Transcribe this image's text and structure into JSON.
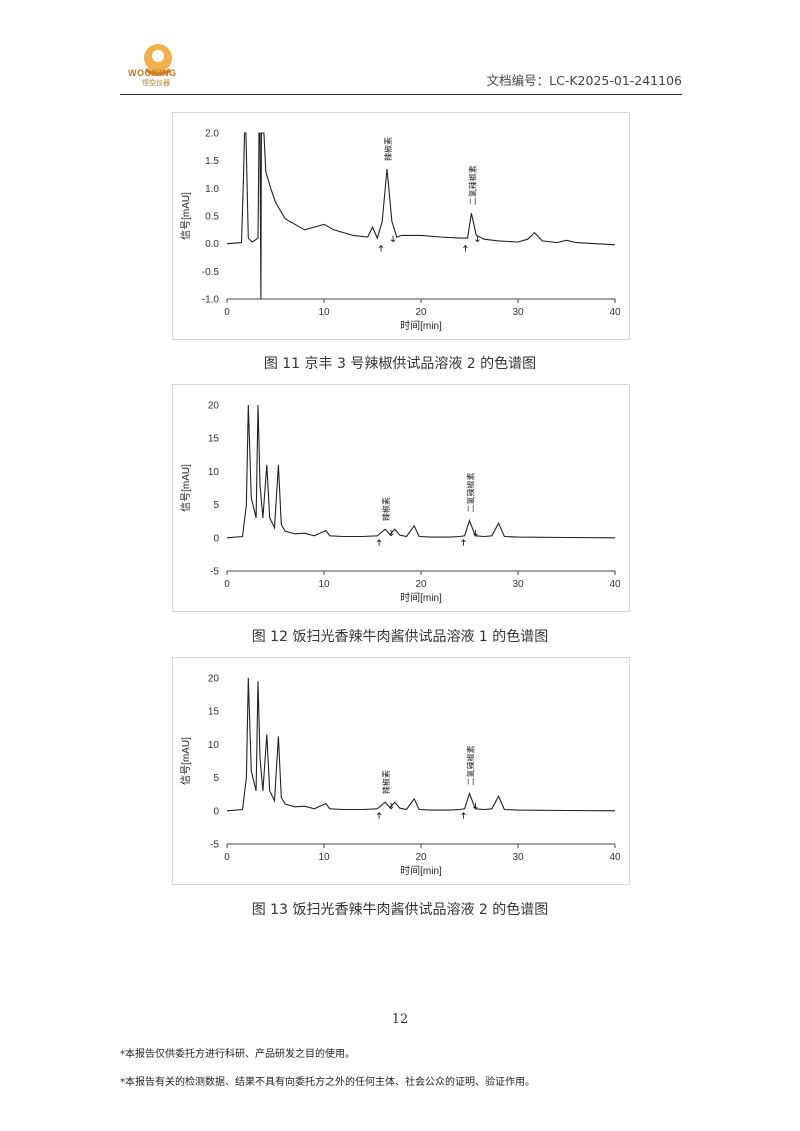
{
  "header": {
    "logo_text": "WOOKING",
    "logo_sub": "悟空仪器",
    "doc_number": "文档编号：LC-K2025-01-241106"
  },
  "captions": [
    "图 11  京丰 3 号辣椒供试品溶液 2 的色谱图",
    "图 12  饭扫光香辣牛肉酱供试品溶液 1 的色谱图",
    "图 13  饭扫光香辣牛肉酱供试品溶液 2 的色谱图"
  ],
  "page_number": "12",
  "footnotes": [
    "*本报告仅供委托方进行科研、产品研发之目的使用。",
    "*本报告有关的检测数据、结果不具有向委托方之外的任何主体、社会公众的证明、验证作用。"
  ],
  "colors": {
    "trace": "#222222",
    "axis": "#444444",
    "logo": "#c8761a"
  },
  "chart_data": [
    {
      "type": "line",
      "xlabel": "时间[min]",
      "ylabel": "信号[mAU]",
      "xlim": [
        0,
        40
      ],
      "ylim": [
        -1.0,
        2.0
      ],
      "xticks": [
        0,
        10,
        20,
        30,
        40
      ],
      "yticks": [
        -1.0,
        -0.5,
        0.0,
        0.5,
        1.0,
        1.5,
        2.0
      ],
      "ytick_labels": [
        "-1.0",
        "-0.5",
        "0.0",
        "0.5",
        "1.0",
        "1.5",
        "2.0"
      ],
      "baseline": 0.0,
      "points": [
        [
          0,
          0
        ],
        [
          1.5,
          0.02
        ],
        [
          1.7,
          1.2
        ],
        [
          1.8,
          2.0
        ],
        [
          1.95,
          2.0
        ],
        [
          2.2,
          0.1
        ],
        [
          2.6,
          0.03
        ],
        [
          3.2,
          0.1
        ],
        [
          3.3,
          2.0
        ],
        [
          3.4,
          2.0
        ],
        [
          3.5,
          -1.0
        ],
        [
          3.55,
          2.0
        ],
        [
          3.8,
          2.0
        ],
        [
          4.0,
          1.3
        ],
        [
          4.5,
          1.0
        ],
        [
          5.0,
          0.75
        ],
        [
          5.5,
          0.6
        ],
        [
          6.0,
          0.45
        ],
        [
          7.0,
          0.35
        ],
        [
          8.0,
          0.25
        ],
        [
          9.0,
          0.3
        ],
        [
          10.0,
          0.35
        ],
        [
          11.0,
          0.25
        ],
        [
          12.0,
          0.2
        ],
        [
          13.0,
          0.15
        ],
        [
          14.5,
          0.12
        ],
        [
          15.0,
          0.3
        ],
        [
          15.5,
          0.1
        ],
        [
          16.0,
          0.4
        ],
        [
          16.5,
          1.35
        ],
        [
          17.0,
          0.4
        ],
        [
          17.5,
          0.12
        ],
        [
          18,
          0.15
        ],
        [
          20,
          0.15
        ],
        [
          22,
          0.12
        ],
        [
          24,
          0.1
        ],
        [
          24.8,
          0.1
        ],
        [
          25.2,
          0.55
        ],
        [
          25.7,
          0.15
        ],
        [
          26.5,
          0.08
        ],
        [
          28,
          0.05
        ],
        [
          30,
          0.03
        ],
        [
          31,
          0.08
        ],
        [
          31.7,
          0.2
        ],
        [
          32.5,
          0.05
        ],
        [
          34,
          0.02
        ],
        [
          35,
          0.06
        ],
        [
          36,
          0.02
        ],
        [
          38,
          0.0
        ],
        [
          40,
          -0.02
        ]
      ],
      "annotations": [
        {
          "label": "辣椒素",
          "x": 16.5,
          "y": 1.35
        },
        {
          "label": "二氢辣椒素",
          "x": 25.2,
          "y": 0.55
        }
      ]
    },
    {
      "type": "line",
      "xlabel": "时间[min]",
      "ylabel": "信号[mAU]",
      "xlim": [
        0,
        40
      ],
      "ylim": [
        -5,
        20
      ],
      "xticks": [
        0,
        10,
        20,
        30,
        40
      ],
      "yticks": [
        -5,
        0,
        5,
        10,
        15,
        20
      ],
      "ytick_labels": [
        "-5",
        "0",
        "5",
        "10",
        "15",
        "20"
      ],
      "baseline": 0,
      "points": [
        [
          0,
          0
        ],
        [
          1.6,
          0.2
        ],
        [
          2.0,
          5
        ],
        [
          2.2,
          20
        ],
        [
          2.5,
          6
        ],
        [
          3.0,
          3
        ],
        [
          3.2,
          20
        ],
        [
          3.4,
          8
        ],
        [
          3.7,
          3
        ],
        [
          4.1,
          11
        ],
        [
          4.4,
          3
        ],
        [
          4.9,
          1.5
        ],
        [
          5.3,
          11
        ],
        [
          5.6,
          2
        ],
        [
          6.0,
          1.0
        ],
        [
          7,
          0.6
        ],
        [
          8,
          0.7
        ],
        [
          9,
          0.3
        ],
        [
          10.2,
          1.1
        ],
        [
          10.6,
          0.3
        ],
        [
          12,
          0.2
        ],
        [
          14,
          0.2
        ],
        [
          15.5,
          0.3
        ],
        [
          16.3,
          1.3
        ],
        [
          16.8,
          0.5
        ],
        [
          17.3,
          1.3
        ],
        [
          17.8,
          0.4
        ],
        [
          18.5,
          0.2
        ],
        [
          19.3,
          1.8
        ],
        [
          19.8,
          0.2
        ],
        [
          21,
          0.1
        ],
        [
          23,
          0.1
        ],
        [
          24,
          0.2
        ],
        [
          24.5,
          0.3
        ],
        [
          25.0,
          2.6
        ],
        [
          25.6,
          0.3
        ],
        [
          26.5,
          0.2
        ],
        [
          27.3,
          0.3
        ],
        [
          28.0,
          2.2
        ],
        [
          28.6,
          0.2
        ],
        [
          30,
          0.1
        ],
        [
          35,
          0.05
        ],
        [
          40,
          0
        ]
      ],
      "annotations": [
        {
          "label": "辣椒素",
          "x": 16.3,
          "y": 1.3
        },
        {
          "label": "二氢辣椒素",
          "x": 25.0,
          "y": 2.6
        }
      ]
    },
    {
      "type": "line",
      "xlabel": "时间[min]",
      "ylabel": "信号[mAU]",
      "xlim": [
        0,
        40
      ],
      "ylim": [
        -5,
        20
      ],
      "xticks": [
        0,
        10,
        20,
        30,
        40
      ],
      "yticks": [
        -5,
        0,
        5,
        10,
        15,
        20
      ],
      "ytick_labels": [
        "-5",
        "0",
        "5",
        "10",
        "15",
        "20"
      ],
      "baseline": 0,
      "points": [
        [
          0,
          0
        ],
        [
          1.6,
          0.2
        ],
        [
          2.0,
          5
        ],
        [
          2.2,
          20
        ],
        [
          2.5,
          6
        ],
        [
          3.0,
          3
        ],
        [
          3.2,
          19.5
        ],
        [
          3.4,
          8
        ],
        [
          3.7,
          3
        ],
        [
          4.1,
          11.5
        ],
        [
          4.4,
          3
        ],
        [
          4.9,
          1.5
        ],
        [
          5.3,
          11.2
        ],
        [
          5.6,
          2
        ],
        [
          6.0,
          1.0
        ],
        [
          7,
          0.6
        ],
        [
          8,
          0.7
        ],
        [
          9,
          0.3
        ],
        [
          10.2,
          1.1
        ],
        [
          10.6,
          0.3
        ],
        [
          12,
          0.2
        ],
        [
          14,
          0.2
        ],
        [
          15.5,
          0.3
        ],
        [
          16.3,
          1.3
        ],
        [
          16.8,
          0.5
        ],
        [
          17.3,
          1.3
        ],
        [
          17.8,
          0.4
        ],
        [
          18.5,
          0.2
        ],
        [
          19.3,
          1.8
        ],
        [
          19.8,
          0.2
        ],
        [
          21,
          0.1
        ],
        [
          23,
          0.1
        ],
        [
          24,
          0.2
        ],
        [
          24.5,
          0.3
        ],
        [
          25.0,
          2.6
        ],
        [
          25.6,
          0.3
        ],
        [
          26.5,
          0.2
        ],
        [
          27.3,
          0.3
        ],
        [
          28.0,
          2.2
        ],
        [
          28.6,
          0.2
        ],
        [
          30,
          0.1
        ],
        [
          35,
          0.05
        ],
        [
          40,
          0
        ]
      ],
      "annotations": [
        {
          "label": "辣椒素",
          "x": 16.3,
          "y": 1.3
        },
        {
          "label": "二氢辣椒素",
          "x": 25.0,
          "y": 2.6
        }
      ]
    }
  ]
}
